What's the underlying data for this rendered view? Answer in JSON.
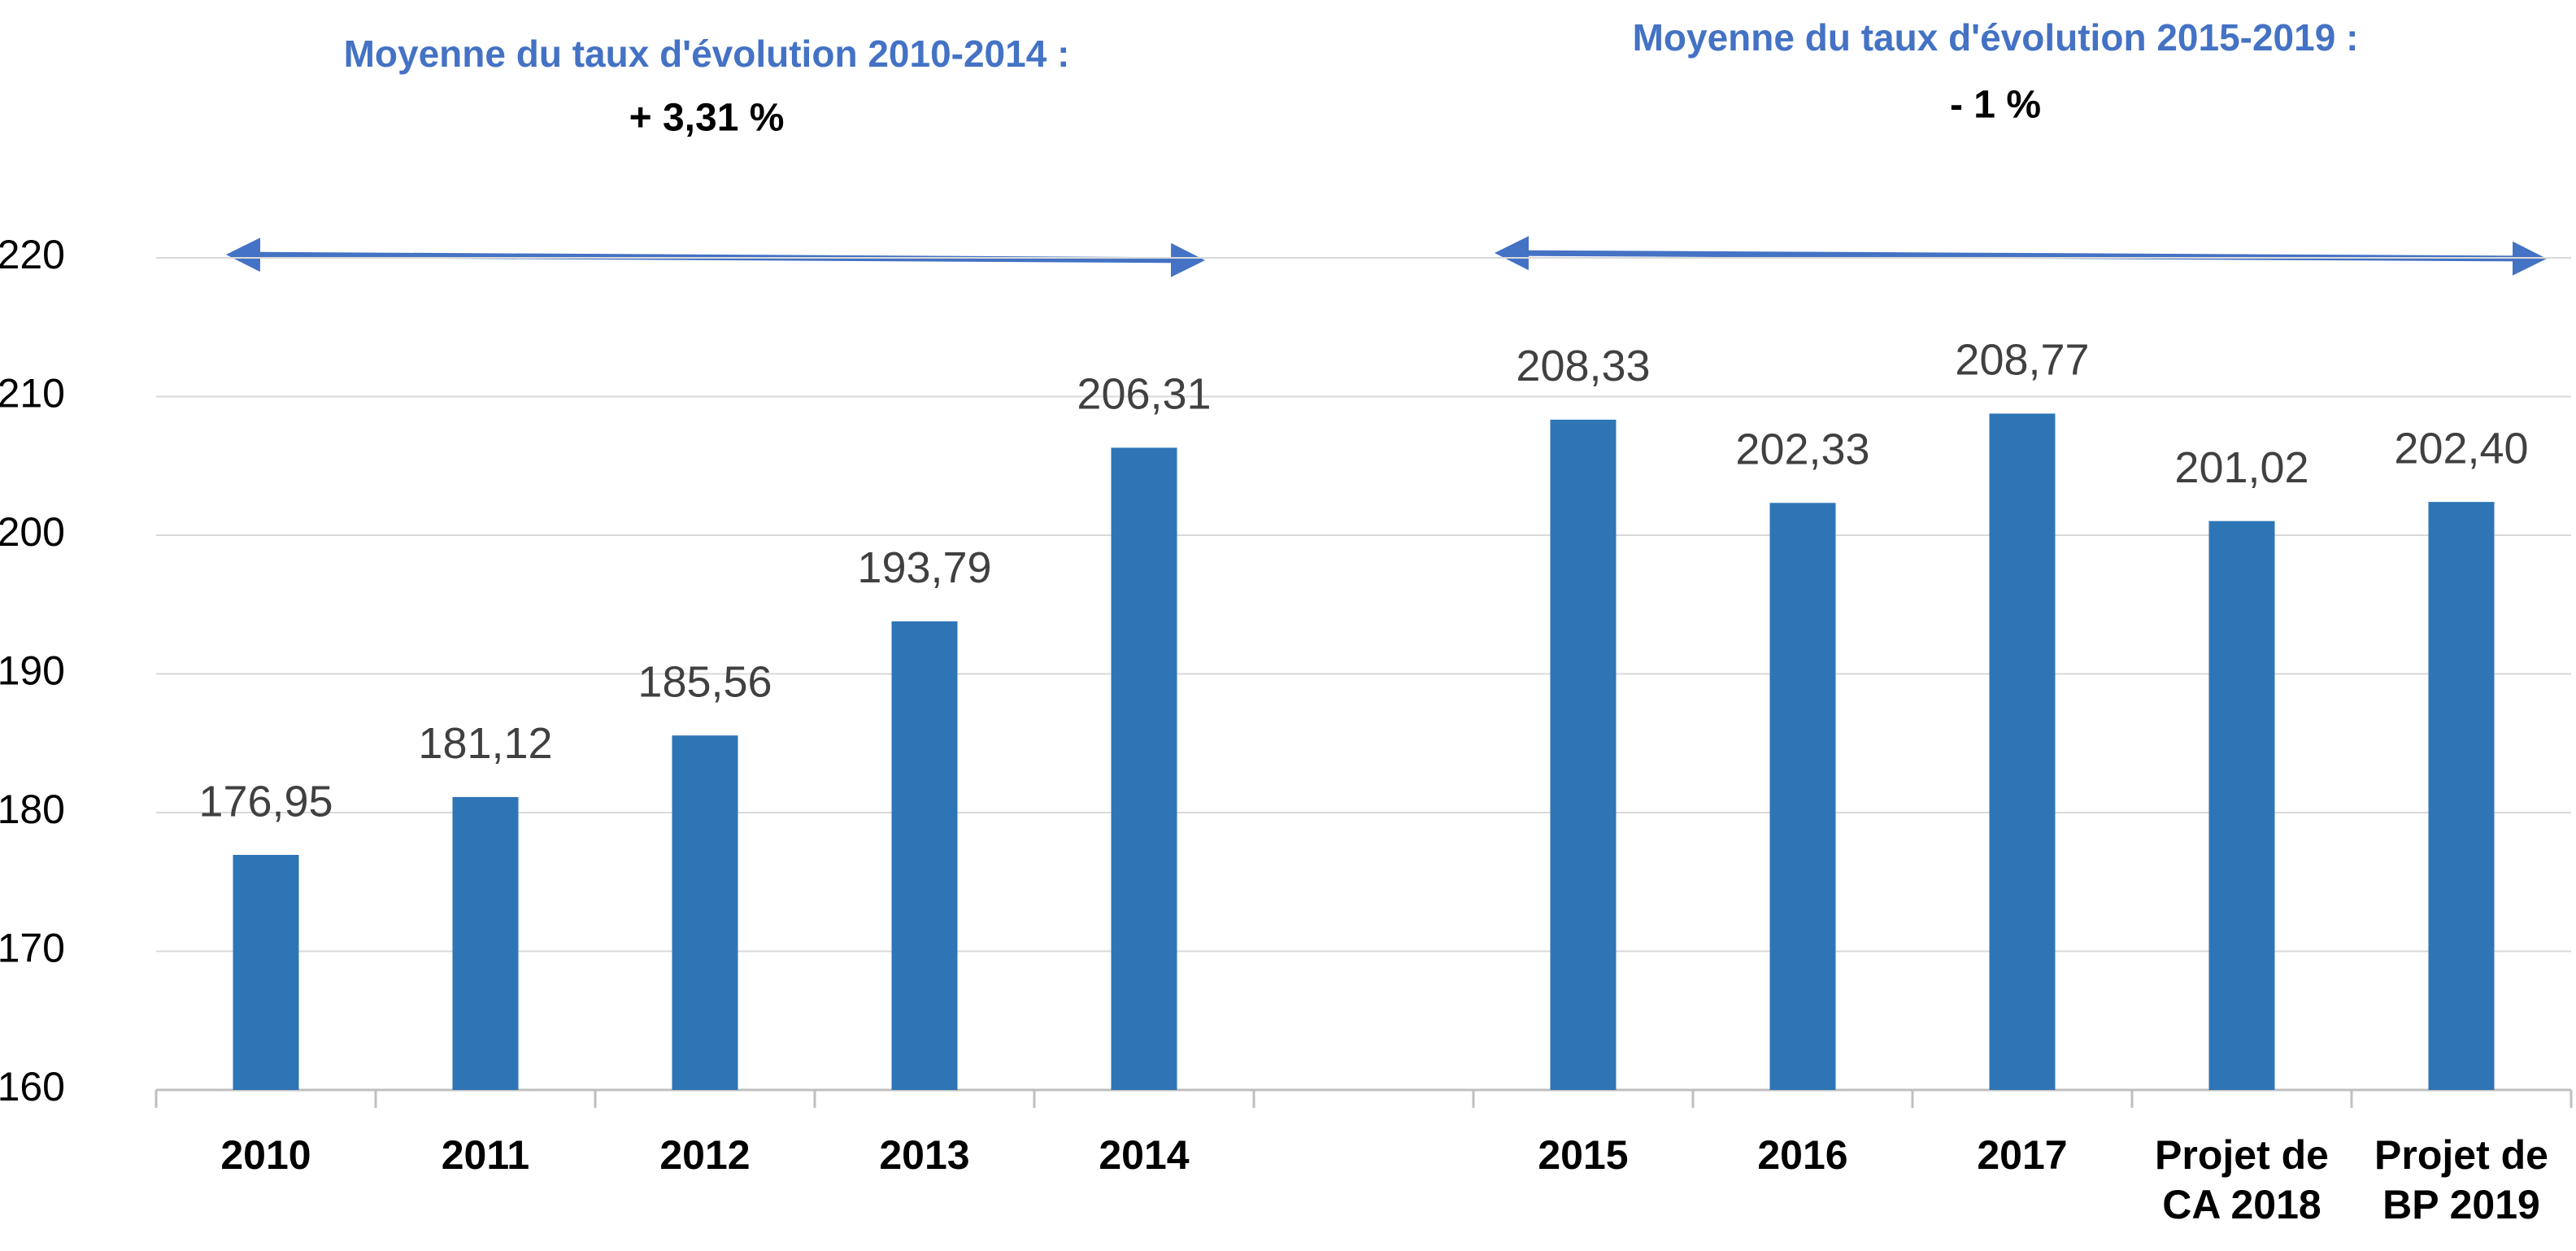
{
  "chart_data": {
    "type": "bar",
    "annotations": [
      {
        "title": "Moyenne du taux d'évolution 2010-2014 :",
        "text": "+ 3,31 %"
      },
      {
        "title": "Moyenne du taux d'évolution 2015-2019 :",
        "text": "- 1 %"
      }
    ],
    "categories": [
      "2010",
      "2011",
      "2012",
      "2013",
      "2014",
      null,
      "2015",
      "2016",
      "2017",
      "Projet de CA 2018",
      "Projet de BP 2019"
    ],
    "values": [
      176.95,
      181.12,
      185.56,
      193.79,
      206.31,
      null,
      208.33,
      202.33,
      208.77,
      201.02,
      202.4
    ],
    "value_labels": [
      "176,95",
      "181,12",
      "185,56",
      "193,79",
      "206,31",
      null,
      "208,33",
      "202,33",
      "208,77",
      "201,02",
      "202,40"
    ],
    "color": "#2e75b6",
    "ylim": [
      160,
      220
    ],
    "yticks": [
      160,
      170,
      180,
      190,
      200,
      210,
      220
    ],
    "grid": true
  }
}
